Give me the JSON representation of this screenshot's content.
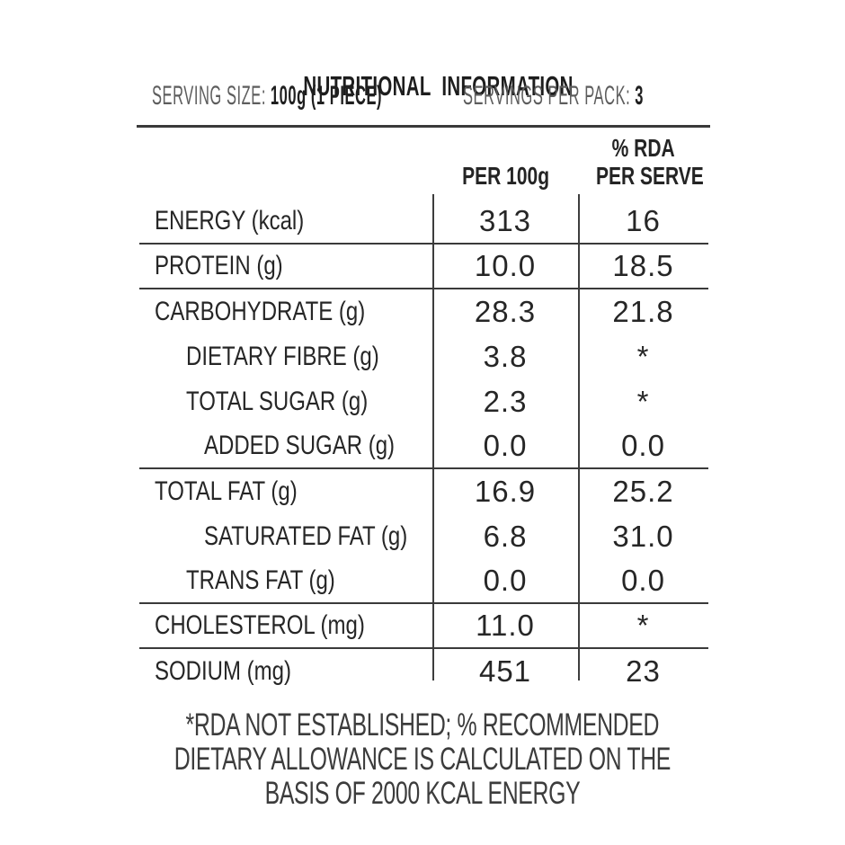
{
  "title": "NUTRITIONAL  INFORMATION",
  "serving_info": {
    "size_label": "SERVING SIZE:",
    "size_value": "100g (1 PIECE)",
    "pack_label": "SERVINGS PER PACK:",
    "pack_value": "3"
  },
  "table": {
    "col_per_100g_header": "PER 100g",
    "col_rda_header_line1": "% RDA",
    "col_rda_header_line2": "PER SERVE",
    "rows": [
      {
        "label": "ENERGY (kcal)",
        "per_100g": "313",
        "rda_per_serve": "16"
      },
      {
        "label": "PROTEIN (g)",
        "per_100g": "10.0",
        "rda_per_serve": "18.5"
      },
      {
        "label": "CARBOHYDRATE (g)",
        "per_100g": "28.3",
        "rda_per_serve": "21.8"
      },
      {
        "label": "DIETARY FIBRE (g)",
        "per_100g": "3.8",
        "rda_per_serve": "*"
      },
      {
        "label": "TOTAL SUGAR (g)",
        "per_100g": "2.3",
        "rda_per_serve": "*"
      },
      {
        "label": "ADDED SUGAR (g)",
        "per_100g": "0.0",
        "rda_per_serve": "0.0"
      },
      {
        "label": "TOTAL FAT (g)",
        "per_100g": "16.9",
        "rda_per_serve": "25.2"
      },
      {
        "label": "SATURATED FAT (g)",
        "per_100g": "6.8",
        "rda_per_serve": "31.0"
      },
      {
        "label": "TRANS FAT (g)",
        "per_100g": "0.0",
        "rda_per_serve": "0.0"
      },
      {
        "label": "CHOLESTEROL (mg)",
        "per_100g": "11.0",
        "rda_per_serve": "*"
      },
      {
        "label": "SODIUM (mg)",
        "per_100g": "451",
        "rda_per_serve": "23"
      }
    ]
  },
  "footnote": {
    "line1": "*RDA NOT ESTABLISHED; % RECOMMENDED",
    "line2": "DIETARY ALLOWANCE IS CALCULATED ON THE",
    "line3": "BASIS OF 2000 KCAL ENERGY"
  },
  "colors": {
    "background": "#ffffff",
    "text": "#262626",
    "light_text": "#5d5d5d",
    "rule": "#3a3a3a"
  }
}
